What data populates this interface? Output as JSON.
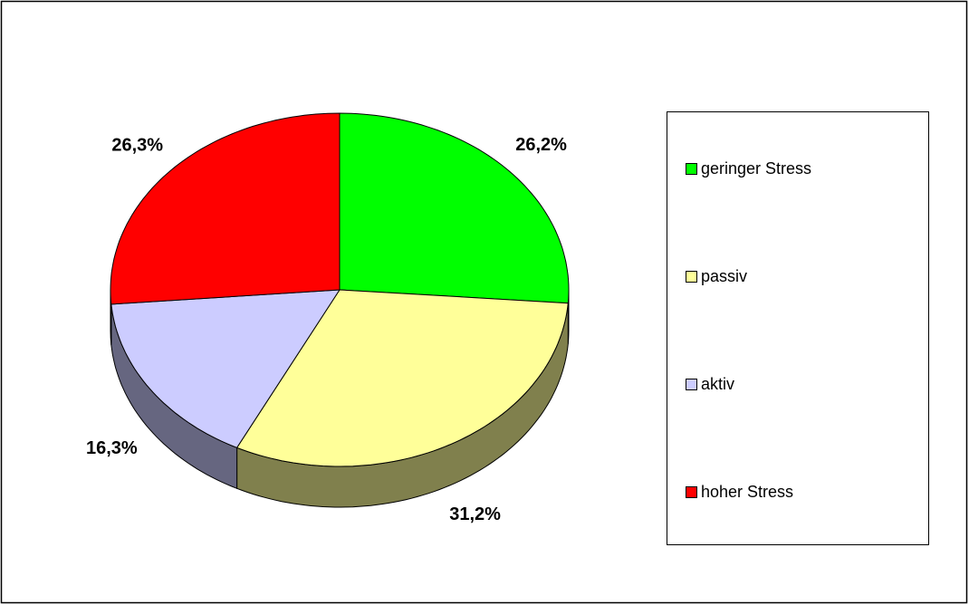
{
  "chart_data": {
    "type": "pie",
    "categories": [
      "geringer Stress",
      "passiv",
      "aktiv",
      "hoher Stress"
    ],
    "values": [
      26.2,
      31.2,
      16.3,
      26.3
    ],
    "value_labels": [
      "26,2%",
      "31,2%",
      "16,3%",
      "26,3%"
    ],
    "colors": [
      "#00ff00",
      "#ffff99",
      "#ccccff",
      "#ff0000"
    ],
    "legend": "right"
  }
}
